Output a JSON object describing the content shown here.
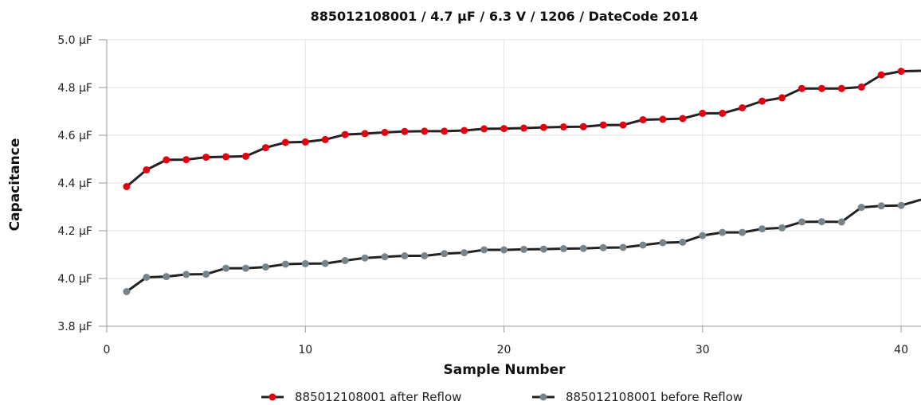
{
  "chart_data": {
    "type": "line",
    "title": "885012108001 / 4.7 µF / 6.3 V / 1206 / DateCode 2014",
    "xlabel": "Sample Number",
    "ylabel": "Capacitance",
    "xlim": [
      0,
      41
    ],
    "ylim": [
      3.8,
      5.0
    ],
    "x_ticks": [
      "0",
      "10",
      "20",
      "30",
      "40"
    ],
    "y_ticks": [
      "3.8 µF",
      "4.0 µF",
      "4.2 µF",
      "4.4 µF",
      "4.6 µF",
      "4.8 µF",
      "5.0 µF"
    ],
    "grid": true,
    "legend_position": "bottom",
    "x": [
      1,
      2,
      3,
      4,
      5,
      6,
      7,
      8,
      9,
      10,
      11,
      12,
      13,
      14,
      15,
      16,
      17,
      18,
      19,
      20,
      21,
      22,
      23,
      24,
      25,
      26,
      27,
      28,
      29,
      30,
      31,
      32,
      33,
      34,
      35,
      36,
      37,
      38,
      39,
      40,
      41
    ],
    "series": [
      {
        "name": "885012108001 after Reflow",
        "marker_color": "#e3000f",
        "line_color": "#222222",
        "values": [
          4.385,
          4.455,
          4.497,
          4.498,
          4.508,
          4.51,
          4.512,
          4.548,
          4.57,
          4.572,
          4.582,
          4.603,
          4.607,
          4.612,
          4.616,
          4.617,
          4.617,
          4.62,
          4.627,
          4.628,
          4.63,
          4.633,
          4.635,
          4.636,
          4.643,
          4.643,
          4.665,
          4.667,
          4.67,
          4.692,
          4.692,
          4.715,
          4.743,
          4.757,
          4.796,
          4.796,
          4.796,
          4.802,
          4.853,
          4.868,
          4.87
        ]
      },
      {
        "name": "885012108001 before Reflow",
        "marker_color": "#78848c",
        "line_color": "#222222",
        "values": [
          3.945,
          4.005,
          4.008,
          4.017,
          4.018,
          4.043,
          4.043,
          4.048,
          4.06,
          4.062,
          4.063,
          4.075,
          4.086,
          4.091,
          4.095,
          4.095,
          4.104,
          4.108,
          4.12,
          4.12,
          4.122,
          4.123,
          4.125,
          4.126,
          4.129,
          4.13,
          4.14,
          4.15,
          4.152,
          4.18,
          4.193,
          4.193,
          4.208,
          4.212,
          4.237,
          4.238,
          4.237,
          4.298,
          4.304,
          4.306,
          4.33
        ]
      }
    ]
  }
}
